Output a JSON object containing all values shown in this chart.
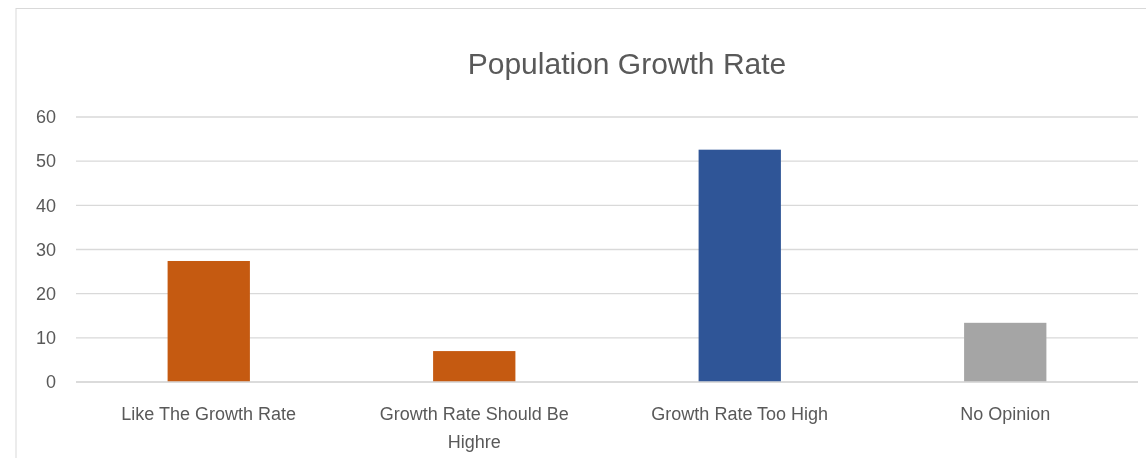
{
  "chart_data": {
    "type": "bar",
    "title": "Population Growth Rate",
    "categories": [
      "Like The Growth Rate",
      "Growth Rate Should Be Highre",
      "Growth Rate Too High",
      "No Opinion"
    ],
    "values": [
      27.4,
      7.0,
      52.6,
      13.4
    ],
    "colors": [
      "#c55a11",
      "#c55a11",
      "#2f5597",
      "#a5a5a5"
    ],
    "ylim": [
      0,
      60
    ],
    "yticks": [
      0,
      10,
      20,
      30,
      40,
      50,
      60
    ],
    "grid": "y"
  }
}
